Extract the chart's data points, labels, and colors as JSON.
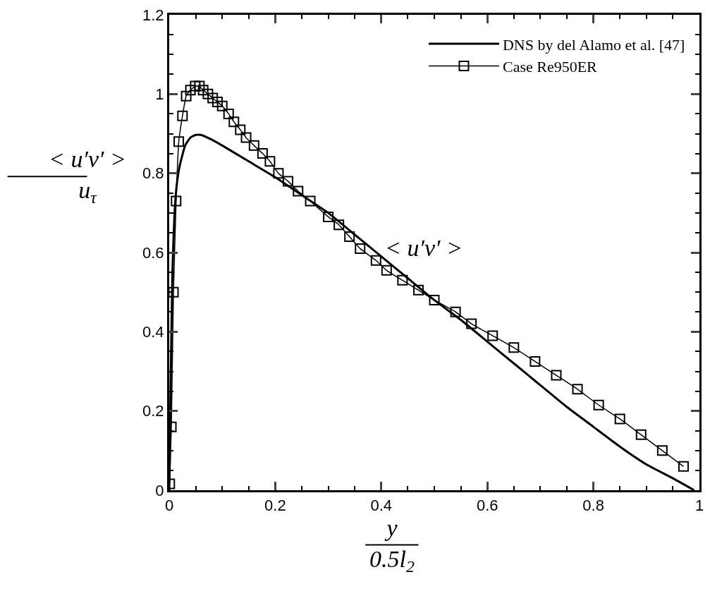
{
  "chart_data": {
    "type": "line",
    "xlabel": "y\n0.5l$_{2}$",
    "ylabel": "< u′v′ >\nu$_{τ}$",
    "annotations": [
      "< u′v′ >"
    ],
    "xlim": [
      0,
      1
    ],
    "xticks": [
      0,
      0.2,
      0.4,
      0.6,
      0.8,
      1
    ],
    "ylim": [
      0,
      1.2
    ],
    "yticks": [
      0,
      0.2,
      0.4,
      0.6,
      0.8,
      1,
      1.2
    ],
    "grid": false,
    "legend": "top right",
    "series": [
      {
        "name": "DNS by del Alamo et al. [47]",
        "color": "#000000",
        "marker": "none",
        "line_style": "solid",
        "x": [
          0,
          0.003,
          0.006,
          0.01,
          0.015,
          0.02,
          0.03,
          0.04,
          0.05,
          0.06,
          0.08,
          0.1,
          0.15,
          0.2,
          0.25,
          0.3,
          0.35,
          0.4,
          0.45,
          0.5,
          0.55,
          0.6,
          0.65,
          0.7,
          0.75,
          0.8,
          0.85,
          0.9,
          0.95,
          0.99
        ],
        "values": [
          0,
          0.3,
          0.55,
          0.7,
          0.78,
          0.82,
          0.87,
          0.89,
          0.897,
          0.897,
          0.885,
          0.87,
          0.83,
          0.79,
          0.745,
          0.7,
          0.645,
          0.59,
          0.535,
          0.48,
          0.43,
          0.375,
          0.32,
          0.265,
          0.21,
          0.16,
          0.11,
          0.065,
          0.03,
          0
        ]
      },
      {
        "name": "Case Re950ER",
        "color": "#000000",
        "marker": "square",
        "line_style": "solid",
        "x": [
          0.001,
          0.004,
          0.008,
          0.013,
          0.018,
          0.025,
          0.032,
          0.04,
          0.049,
          0.057,
          0.064,
          0.073,
          0.082,
          0.091,
          0.1,
          0.112,
          0.122,
          0.134,
          0.145,
          0.16,
          0.176,
          0.19,
          0.206,
          0.224,
          0.243,
          0.266,
          0.3,
          0.32,
          0.34,
          0.36,
          0.39,
          0.41,
          0.44,
          0.47,
          0.5,
          0.54,
          0.57,
          0.61,
          0.65,
          0.69,
          0.73,
          0.77,
          0.81,
          0.85,
          0.89,
          0.93,
          0.97
        ],
        "values": [
          0.016,
          0.16,
          0.5,
          0.73,
          0.88,
          0.945,
          0.995,
          1.01,
          1.02,
          1.02,
          1.01,
          1.0,
          0.99,
          0.98,
          0.97,
          0.95,
          0.93,
          0.91,
          0.89,
          0.87,
          0.85,
          0.83,
          0.8,
          0.78,
          0.755,
          0.73,
          0.69,
          0.67,
          0.64,
          0.61,
          0.58,
          0.555,
          0.53,
          0.505,
          0.48,
          0.45,
          0.42,
          0.39,
          0.36,
          0.325,
          0.29,
          0.255,
          0.215,
          0.18,
          0.14,
          0.1,
          0.06
        ]
      }
    ]
  }
}
